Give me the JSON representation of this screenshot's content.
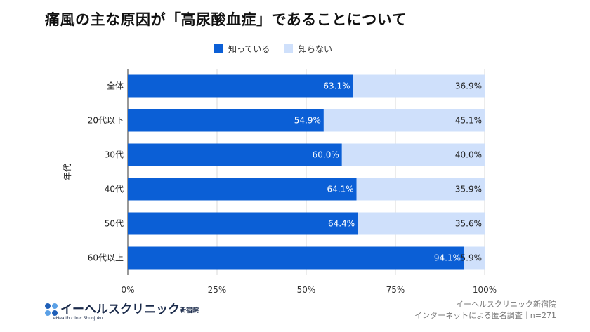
{
  "title": "痛風の主な原因が「高尿酸血症」であることについて",
  "colors": {
    "known": "#0b5fd6",
    "unknown": "#cfe0fb",
    "grid": "#d8d8d8"
  },
  "chart_data": {
    "type": "bar",
    "stacked": true,
    "orientation": "horizontal",
    "title": "痛風の主な原因が「高尿酸血症」であることについて",
    "ylabel": "年代",
    "xlabel": "",
    "categories": [
      "全体",
      "20代以下",
      "30代",
      "40代",
      "50代",
      "60代以上"
    ],
    "series": [
      {
        "name": "知っている",
        "values": [
          63.1,
          54.9,
          60.0,
          64.1,
          64.4,
          94.1
        ],
        "labels": [
          "63.1%",
          "54.9%",
          "60.0%",
          "64.1%",
          "64.4%",
          "94.1%"
        ]
      },
      {
        "name": "知らない",
        "values": [
          36.9,
          45.1,
          40.0,
          35.9,
          35.6,
          5.9
        ],
        "labels": [
          "36.9%",
          "45.1%",
          "40.0%",
          "35.9%",
          "35.6%",
          "5.9%"
        ]
      }
    ],
    "xlim": [
      0,
      100
    ],
    "xticks": [
      "0%",
      "25%",
      "50%",
      "75%",
      "100%"
    ],
    "grid": true,
    "legend": "top-center"
  },
  "logo": {
    "name": "イーヘルスクリニック",
    "branch": "新宿院",
    "english": "eHealth clinic Shunjuku"
  },
  "source": {
    "line1": "イーヘルスクリニック新宿院",
    "line2": "インターネットによる匿名調査｜n=271"
  }
}
